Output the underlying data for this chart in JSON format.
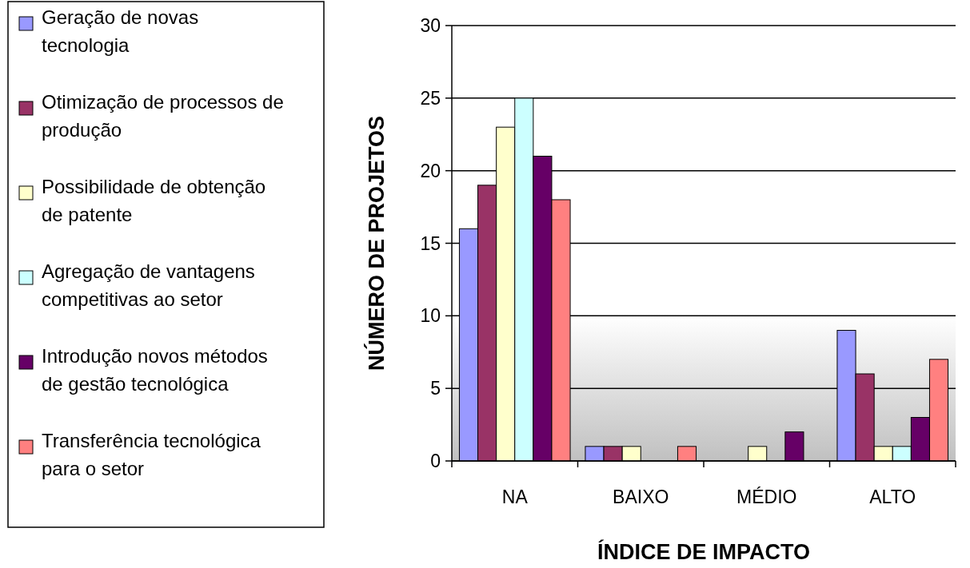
{
  "chart_data": {
    "type": "bar",
    "xlabel": "ÍNDICE DE IMPACTO",
    "ylabel": "NÚMERO DE PROJETOS",
    "categories": [
      "NA",
      "BAIXO",
      "MÉDIO",
      "ALTO"
    ],
    "series": [
      {
        "name": "Geração de novas tecnologia",
        "color": "#9999ff",
        "values": [
          16,
          1,
          0,
          9
        ]
      },
      {
        "name": "Otimização de processos de produção",
        "color": "#993366",
        "values": [
          19,
          1,
          0,
          6
        ]
      },
      {
        "name": "Possibilidade de obtenção de patente",
        "color": "#ffffcc",
        "values": [
          23,
          1,
          1,
          1
        ]
      },
      {
        "name": "Agregação de vantagens competitivas ao setor",
        "color": "#ccffff",
        "values": [
          25,
          0,
          0,
          1
        ]
      },
      {
        "name": "Introdução novos métodos de gestão tecnológica",
        "color": "#660066",
        "values": [
          21,
          0,
          2,
          3
        ]
      },
      {
        "name": "Transferência tecnológica para o setor",
        "color": "#ff8080",
        "values": [
          18,
          1,
          0,
          7
        ]
      }
    ],
    "ylim": [
      0,
      30
    ],
    "yticks": [
      0,
      5,
      10,
      15,
      20,
      25,
      30
    ],
    "grid": "y",
    "legend": "left",
    "bands": [
      {
        "axis": "y",
        "from": 0,
        "to": 10,
        "color": "#c0c0c0"
      }
    ]
  }
}
